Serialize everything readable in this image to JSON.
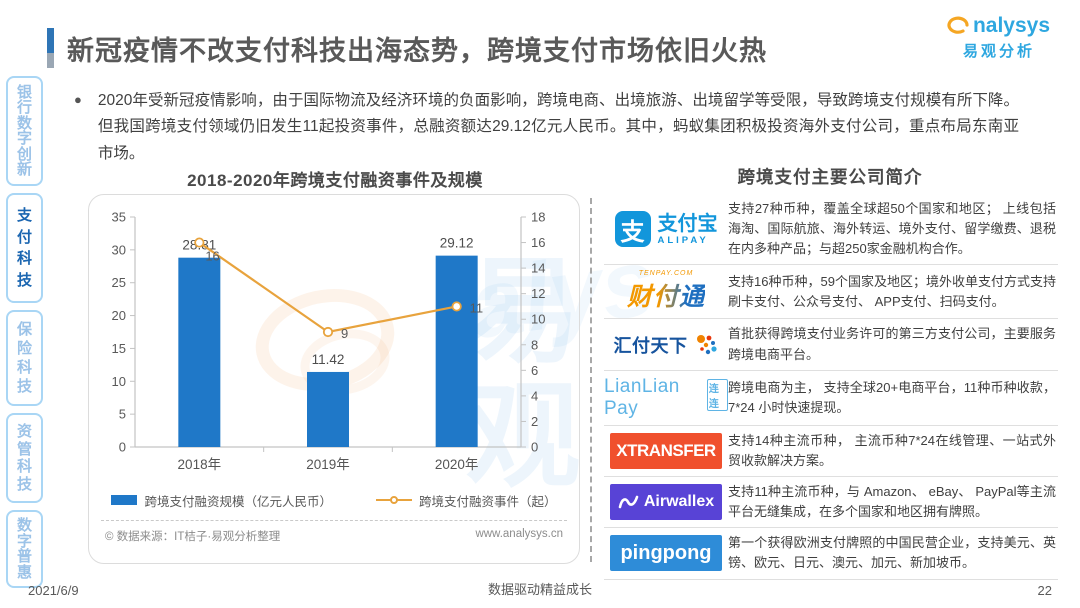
{
  "page": {
    "title": "新冠疫情不改支付科技出海态势，跨境支付市场依旧火热",
    "date": "2021/6/9",
    "footer_center": "数据驱动精益成长",
    "page_number": "22"
  },
  "brand": {
    "name_en": "nalysys",
    "name_cn": "易观分析"
  },
  "sidebar": {
    "items": [
      {
        "label": "银行数字创新",
        "active": false
      },
      {
        "label": "支付科技",
        "active": true
      },
      {
        "label": "保险科技",
        "active": false
      },
      {
        "label": "资管科技",
        "active": false
      },
      {
        "label": "数字普惠",
        "active": false
      }
    ]
  },
  "bullet": {
    "marker": "●",
    "text": "2020年受新冠疫情影响，由于国际物流及经济环境的负面影响，跨境电商、出境旅游、出境留学等受限，导致跨境支付规模有所下降。但我国跨境支付领域仍旧发生11起投资事件，总融资额达29.12亿元人民币。其中，蚂蚁集团积极投资海外支付公司，重点布局东南亚市场。"
  },
  "chart": {
    "source_left": "© 数据来源：IT桔子·易观分析整理",
    "source_right": "www.analysys.cn"
  },
  "chart_data": {
    "type": "bar+line",
    "title": "2018-2020年跨境支付融资事件及规模",
    "categories": [
      "2018年",
      "2019年",
      "2020年"
    ],
    "series": [
      {
        "name": "跨境支付融资规模（亿元人民币）",
        "type": "bar",
        "axis": "left",
        "values": [
          28.81,
          11.42,
          29.12
        ]
      },
      {
        "name": "跨境支付融资事件（起）",
        "type": "line",
        "axis": "right",
        "values": [
          16,
          9,
          11
        ]
      }
    ],
    "left_axis": {
      "min": 0,
      "max": 35,
      "step": 5
    },
    "right_axis": {
      "min": 0,
      "max": 18,
      "step": 2
    },
    "grid": false,
    "legend_position": "bottom"
  },
  "companies": {
    "title": "跨境支付主要公司简介",
    "rows": [
      {
        "name": "支付宝",
        "logo": {
          "glyph": "支",
          "cn": "支付宝",
          "en": "ALIPAY"
        },
        "desc": "支持27种币种，覆盖全球超50个国家和地区； 上线包括海淘、国际航旅、海外转运、境外支付、留学缴费、退税在内多种产品；与超250家金融机构合作。"
      },
      {
        "name": "财付通",
        "logo": {
          "site": "TENPAY.COM",
          "cn": "财付通"
        },
        "desc": "支持16种币种，59个国家及地区；境外收单支付方式支持刷卡支付、公众号支付、 APP支付、扫码支付。"
      },
      {
        "name": "汇付天下",
        "logo": {
          "cn": "汇付天下"
        },
        "desc": "首批获得跨境支付业务许可的第三方支付公司，主要服务跨境电商平台。"
      },
      {
        "name": "LianLian Pay",
        "logo": {
          "en": "LianLian Pay",
          "cn": "连连"
        },
        "desc": "跨境电商为主， 支持全球20+电商平台，11种币种收款，7*24 小时快速提现。"
      },
      {
        "name": "XTRANSFER",
        "logo": {
          "en": "XTRANSFER"
        },
        "desc": "支持14种主流币种， 主流币种7*24在线管理、一站式外贸收款解决方案。"
      },
      {
        "name": "Airwallex",
        "logo": {
          "en": "Airwallex"
        },
        "desc": "支持11种主流币种，与 Amazon、 eBay、 PayPal等主流平台无缝集成，在多个国家和地区拥有牌照。"
      },
      {
        "name": "pingpong",
        "logo": {
          "en": "pingpong"
        },
        "desc": "第一个获得欧洲支付牌照的中国民营企业，支持美元、英镑、欧元、日元、澳元、加元、新加坡币。"
      }
    ]
  },
  "watermark": {
    "cn": "易观",
    "en": "alys"
  },
  "colors": {
    "accent": "#2E75B6",
    "title_text": "#595959",
    "body_text": "#404040",
    "bar": "#1F78C8",
    "line": "#E8A33D",
    "sidebar_active": "#1B66B1",
    "sidebar_inactive": "#9CC3E8",
    "sidebar_border": "#A9D6F5",
    "alipay_blue": "#1296DB",
    "tenpay_orange": "#F39800",
    "tenpay_blue": "#1E6FC0",
    "huifu_blue": "#17549E",
    "lianlian_blue": "#5FB4E5",
    "xtransfer": "#F0502D",
    "airwallex": "#5843D6",
    "pingpong": "#2E8CD8",
    "analysys_blue": "#2EA7E0",
    "analysys_orange": "#F5A623",
    "source_text": "#8C8C8C"
  }
}
